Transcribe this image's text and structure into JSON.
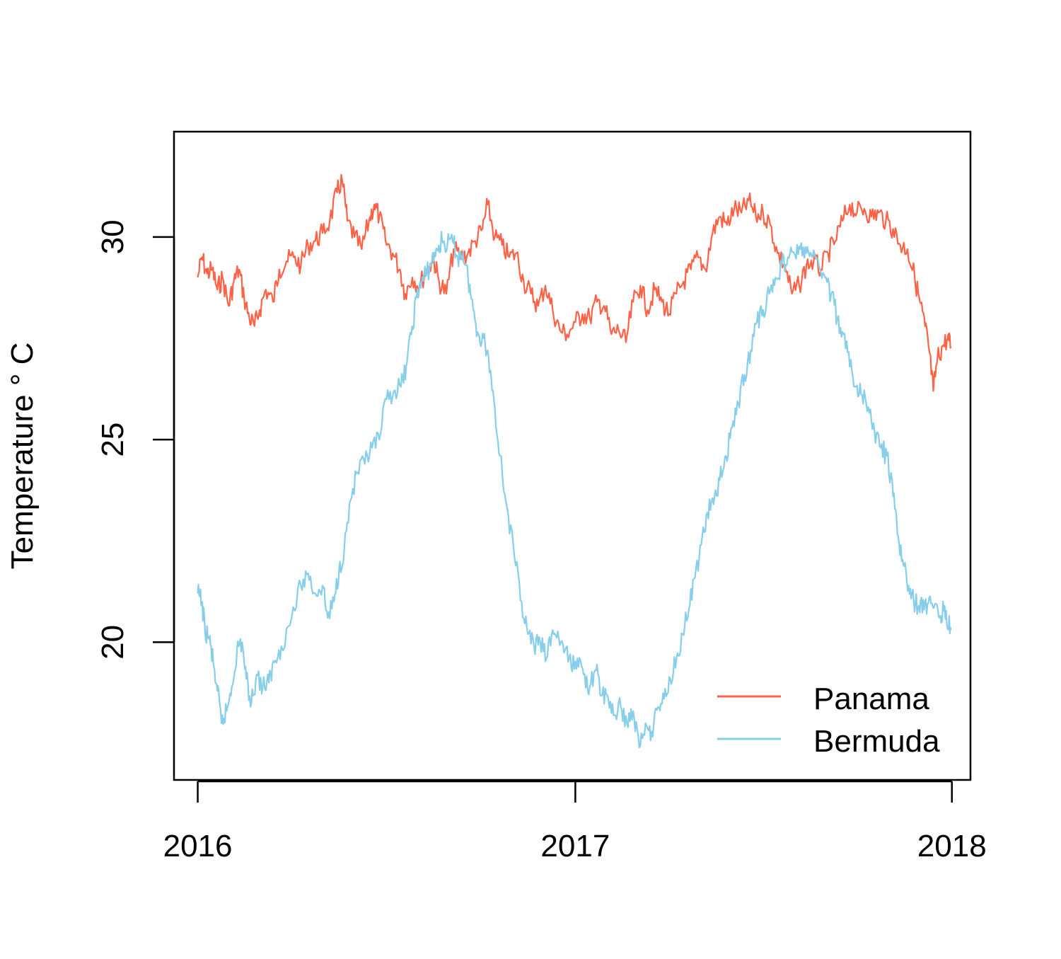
{
  "chart_data": {
    "type": "line",
    "title": "",
    "xlabel": "",
    "ylabel": "Temperature ° C",
    "x_range": [
      "2015-12-09",
      "2018-01-19"
    ],
    "ylim": [
      16.6,
      32.6
    ],
    "x_ticks": [
      "2016-01-01",
      "2017-01-01",
      "2018-01-01"
    ],
    "x_tick_labels": [
      "2016",
      "2017",
      "2018"
    ],
    "y_ticks": [
      20,
      25,
      30
    ],
    "y_tick_labels": [
      "20",
      "25",
      "30"
    ],
    "grid": false,
    "legend_position": "bottom-right",
    "series": [
      {
        "name": "Panama",
        "color": "#FF6347",
        "points": [
          [
            "2016-01-01",
            29.0
          ],
          [
            "2016-01-05",
            29.5
          ],
          [
            "2016-01-10",
            29.1
          ],
          [
            "2016-01-15",
            29.2
          ],
          [
            "2016-01-20",
            28.7
          ],
          [
            "2016-01-25",
            29.0
          ],
          [
            "2016-01-31",
            28.3
          ],
          [
            "2016-02-05",
            28.9
          ],
          [
            "2016-02-10",
            29.2
          ],
          [
            "2016-02-15",
            28.5
          ],
          [
            "2016-02-20",
            28.0
          ],
          [
            "2016-02-25",
            27.8
          ],
          [
            "2016-03-01",
            28.2
          ],
          [
            "2016-03-07",
            28.7
          ],
          [
            "2016-03-14",
            28.4
          ],
          [
            "2016-03-20",
            29.2
          ],
          [
            "2016-03-27",
            29.4
          ],
          [
            "2016-04-03",
            29.5
          ],
          [
            "2016-04-10",
            29.3
          ],
          [
            "2016-04-17",
            29.8
          ],
          [
            "2016-04-24",
            29.9
          ],
          [
            "2016-05-01",
            30.1
          ],
          [
            "2016-05-08",
            30.4
          ],
          [
            "2016-05-15",
            31.1
          ],
          [
            "2016-05-20",
            31.4
          ],
          [
            "2016-05-25",
            30.4
          ],
          [
            "2016-06-01",
            30.0
          ],
          [
            "2016-06-08",
            29.7
          ],
          [
            "2016-06-15",
            30.4
          ],
          [
            "2016-06-20",
            30.8
          ],
          [
            "2016-06-25",
            30.5
          ],
          [
            "2016-07-01",
            29.9
          ],
          [
            "2016-07-08",
            29.6
          ],
          [
            "2016-07-15",
            29.2
          ],
          [
            "2016-07-20",
            28.6
          ],
          [
            "2016-07-27",
            29.0
          ],
          [
            "2016-08-03",
            28.8
          ],
          [
            "2016-08-10",
            29.2
          ],
          [
            "2016-08-17",
            29.4
          ],
          [
            "2016-08-22",
            28.9
          ],
          [
            "2016-08-29",
            28.6
          ],
          [
            "2016-09-05",
            29.7
          ],
          [
            "2016-09-12",
            29.5
          ],
          [
            "2016-09-19",
            29.6
          ],
          [
            "2016-09-26",
            29.9
          ],
          [
            "2016-10-03",
            30.2
          ],
          [
            "2016-10-08",
            30.8
          ],
          [
            "2016-10-15",
            30.0
          ],
          [
            "2016-10-22",
            29.8
          ],
          [
            "2016-10-29",
            29.5
          ],
          [
            "2016-11-05",
            29.6
          ],
          [
            "2016-11-12",
            28.9
          ],
          [
            "2016-11-19",
            28.6
          ],
          [
            "2016-11-26",
            28.3
          ],
          [
            "2016-12-03",
            28.8
          ],
          [
            "2016-12-10",
            28.2
          ],
          [
            "2016-12-17",
            27.7
          ],
          [
            "2016-12-24",
            27.6
          ],
          [
            "2017-01-01",
            27.9
          ],
          [
            "2017-01-08",
            28.1
          ],
          [
            "2017-01-15",
            28.0
          ],
          [
            "2017-01-22",
            28.4
          ],
          [
            "2017-01-29",
            28.3
          ],
          [
            "2017-02-05",
            27.6
          ],
          [
            "2017-02-12",
            27.7
          ],
          [
            "2017-02-19",
            27.4
          ],
          [
            "2017-02-26",
            28.4
          ],
          [
            "2017-03-05",
            28.8
          ],
          [
            "2017-03-12",
            28.2
          ],
          [
            "2017-03-19",
            28.7
          ],
          [
            "2017-03-26",
            28.4
          ],
          [
            "2017-04-02",
            28.1
          ],
          [
            "2017-04-09",
            28.6
          ],
          [
            "2017-04-16",
            28.9
          ],
          [
            "2017-04-23",
            29.2
          ],
          [
            "2017-04-30",
            29.5
          ],
          [
            "2017-05-07",
            29.2
          ],
          [
            "2017-05-14",
            30.1
          ],
          [
            "2017-05-21",
            30.5
          ],
          [
            "2017-05-28",
            30.3
          ],
          [
            "2017-06-04",
            30.7
          ],
          [
            "2017-06-11",
            30.6
          ],
          [
            "2017-06-18",
            30.9
          ],
          [
            "2017-06-25",
            30.5
          ],
          [
            "2017-07-02",
            30.6
          ],
          [
            "2017-07-09",
            30.3
          ],
          [
            "2017-07-16",
            29.6
          ],
          [
            "2017-07-23",
            29.3
          ],
          [
            "2017-07-30",
            28.6
          ],
          [
            "2017-08-06",
            28.8
          ],
          [
            "2017-08-13",
            29.3
          ],
          [
            "2017-08-20",
            29.4
          ],
          [
            "2017-08-27",
            29.2
          ],
          [
            "2017-09-03",
            29.6
          ],
          [
            "2017-09-10",
            29.9
          ],
          [
            "2017-09-17",
            30.4
          ],
          [
            "2017-09-24",
            30.8
          ],
          [
            "2017-10-01",
            30.6
          ],
          [
            "2017-10-08",
            30.7
          ],
          [
            "2017-10-15",
            30.5
          ],
          [
            "2017-10-22",
            30.6
          ],
          [
            "2017-10-29",
            30.4
          ],
          [
            "2017-11-05",
            30.2
          ],
          [
            "2017-11-12",
            29.8
          ],
          [
            "2017-11-19",
            29.7
          ],
          [
            "2017-11-26",
            29.0
          ],
          [
            "2017-12-01",
            28.4
          ],
          [
            "2017-12-06",
            27.8
          ],
          [
            "2017-12-10",
            27.2
          ],
          [
            "2017-12-14",
            26.2
          ],
          [
            "2017-12-18",
            27.0
          ],
          [
            "2017-12-23",
            27.3
          ],
          [
            "2017-12-28",
            27.5
          ],
          [
            "2017-12-31",
            27.3
          ]
        ]
      },
      {
        "name": "Bermuda",
        "color": "#87CEEB",
        "points": [
          [
            "2016-01-01",
            21.2
          ],
          [
            "2016-01-05",
            21.0
          ],
          [
            "2016-01-08",
            20.3
          ],
          [
            "2016-01-12",
            20.1
          ],
          [
            "2016-01-16",
            19.5
          ],
          [
            "2016-01-20",
            18.8
          ],
          [
            "2016-01-24",
            18.0
          ],
          [
            "2016-01-29",
            18.3
          ],
          [
            "2016-02-03",
            18.9
          ],
          [
            "2016-02-08",
            19.8
          ],
          [
            "2016-02-13",
            20.0
          ],
          [
            "2016-02-17",
            19.1
          ],
          [
            "2016-02-22",
            18.5
          ],
          [
            "2016-02-27",
            19.2
          ],
          [
            "2016-03-04",
            18.9
          ],
          [
            "2016-03-10",
            19.0
          ],
          [
            "2016-03-15",
            19.5
          ],
          [
            "2016-03-22",
            19.9
          ],
          [
            "2016-04-01",
            20.6
          ],
          [
            "2016-04-10",
            21.4
          ],
          [
            "2016-04-17",
            21.7
          ],
          [
            "2016-04-24",
            21.2
          ],
          [
            "2016-05-01",
            21.4
          ],
          [
            "2016-05-06",
            20.6
          ],
          [
            "2016-05-12",
            21.0
          ],
          [
            "2016-05-17",
            21.8
          ],
          [
            "2016-05-22",
            22.3
          ],
          [
            "2016-05-28",
            23.5
          ],
          [
            "2016-06-04",
            24.2
          ],
          [
            "2016-06-11",
            24.4
          ],
          [
            "2016-06-18",
            24.8
          ],
          [
            "2016-06-25",
            25.0
          ],
          [
            "2016-07-02",
            26.0
          ],
          [
            "2016-07-09",
            26.2
          ],
          [
            "2016-07-16",
            26.3
          ],
          [
            "2016-07-21",
            26.8
          ],
          [
            "2016-07-26",
            27.6
          ],
          [
            "2016-07-31",
            28.5
          ],
          [
            "2016-08-05",
            28.9
          ],
          [
            "2016-08-10",
            29.1
          ],
          [
            "2016-08-15",
            29.4
          ],
          [
            "2016-08-20",
            29.7
          ],
          [
            "2016-08-25",
            29.9
          ],
          [
            "2016-08-30",
            29.8
          ],
          [
            "2016-09-04",
            29.9
          ],
          [
            "2016-09-09",
            29.5
          ],
          [
            "2016-09-14",
            29.6
          ],
          [
            "2016-09-19",
            29.0
          ],
          [
            "2016-09-24",
            28.2
          ],
          [
            "2016-09-29",
            27.6
          ],
          [
            "2016-10-04",
            27.5
          ],
          [
            "2016-10-09",
            27.0
          ],
          [
            "2016-10-14",
            26.0
          ],
          [
            "2016-10-20",
            24.6
          ],
          [
            "2016-10-27",
            23.3
          ],
          [
            "2016-11-03",
            22.1
          ],
          [
            "2016-11-10",
            21.0
          ],
          [
            "2016-11-16",
            20.2
          ],
          [
            "2016-11-22",
            19.9
          ],
          [
            "2016-11-28",
            20.0
          ],
          [
            "2016-12-04",
            19.6
          ],
          [
            "2016-12-10",
            20.3
          ],
          [
            "2016-12-16",
            20.1
          ],
          [
            "2016-12-22",
            19.8
          ],
          [
            "2016-12-28",
            19.4
          ],
          [
            "2017-01-03",
            19.6
          ],
          [
            "2017-01-09",
            19.2
          ],
          [
            "2017-01-15",
            18.9
          ],
          [
            "2017-01-21",
            19.3
          ],
          [
            "2017-01-27",
            18.7
          ],
          [
            "2017-02-02",
            18.6
          ],
          [
            "2017-02-08",
            18.2
          ],
          [
            "2017-02-14",
            18.4
          ],
          [
            "2017-02-20",
            18.0
          ],
          [
            "2017-02-26",
            18.3
          ],
          [
            "2017-03-04",
            17.4
          ],
          [
            "2017-03-10",
            18.0
          ],
          [
            "2017-03-16",
            17.8
          ],
          [
            "2017-03-22",
            18.4
          ],
          [
            "2017-03-28",
            18.6
          ],
          [
            "2017-04-03",
            19.1
          ],
          [
            "2017-04-09",
            19.6
          ],
          [
            "2017-04-15",
            20.2
          ],
          [
            "2017-04-21",
            20.8
          ],
          [
            "2017-04-27",
            21.6
          ],
          [
            "2017-05-03",
            22.4
          ],
          [
            "2017-05-09",
            23.2
          ],
          [
            "2017-05-15",
            23.4
          ],
          [
            "2017-05-21",
            24.0
          ],
          [
            "2017-05-27",
            24.6
          ],
          [
            "2017-06-02",
            25.3
          ],
          [
            "2017-06-08",
            25.9
          ],
          [
            "2017-06-14",
            26.6
          ],
          [
            "2017-06-20",
            27.2
          ],
          [
            "2017-06-26",
            27.9
          ],
          [
            "2017-07-02",
            28.2
          ],
          [
            "2017-07-08",
            28.6
          ],
          [
            "2017-07-14",
            29.0
          ],
          [
            "2017-07-20",
            29.3
          ],
          [
            "2017-07-26",
            29.5
          ],
          [
            "2017-08-01",
            29.6
          ],
          [
            "2017-08-07",
            29.7
          ],
          [
            "2017-08-13",
            29.6
          ],
          [
            "2017-08-19",
            29.5
          ],
          [
            "2017-08-25",
            29.3
          ],
          [
            "2017-08-31",
            29.0
          ],
          [
            "2017-09-06",
            28.6
          ],
          [
            "2017-09-12",
            28.0
          ],
          [
            "2017-09-18",
            27.6
          ],
          [
            "2017-09-24",
            26.8
          ],
          [
            "2017-09-30",
            26.3
          ],
          [
            "2017-10-06",
            26.1
          ],
          [
            "2017-10-12",
            25.8
          ],
          [
            "2017-10-18",
            25.2
          ],
          [
            "2017-10-24",
            24.8
          ],
          [
            "2017-10-30",
            24.6
          ],
          [
            "2017-11-05",
            23.6
          ],
          [
            "2017-11-10",
            22.6
          ],
          [
            "2017-11-15",
            21.9
          ],
          [
            "2017-11-20",
            21.4
          ],
          [
            "2017-11-25",
            21.0
          ],
          [
            "2017-11-30",
            20.9
          ],
          [
            "2017-12-05",
            20.8
          ],
          [
            "2017-12-10",
            21.1
          ],
          [
            "2017-12-15",
            20.9
          ],
          [
            "2017-12-20",
            20.6
          ],
          [
            "2017-12-25",
            20.9
          ],
          [
            "2017-12-29",
            20.4
          ],
          [
            "2017-12-31",
            20.3
          ]
        ]
      }
    ]
  }
}
